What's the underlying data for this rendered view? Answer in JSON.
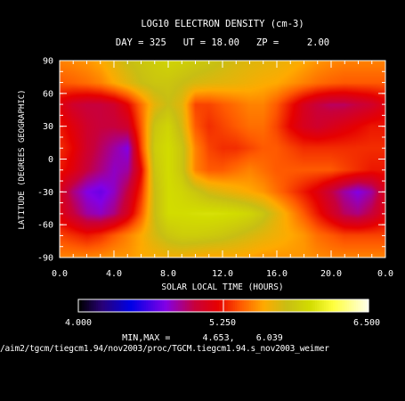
{
  "chart_data": {
    "type": "heatmap",
    "title": "LOG10 ELECTRON DENSITY (cm-3)",
    "subtitle": "DAY = 325   UT = 18.00   ZP =     2.00",
    "xlabel": "SOLAR LOCAL TIME (HOURS)",
    "ylabel": "LATITUDE (DEGREES GEOGRAPHIC)",
    "xlim": [
      0.0,
      24.0
    ],
    "ylim": [
      -90,
      90
    ],
    "x_ticks": [
      "0.0",
      "4.0",
      "8.0",
      "12.0",
      "16.0",
      "20.0",
      "0.0"
    ],
    "y_ticks": [
      "90",
      "60",
      "30",
      "0",
      "-30",
      "-60",
      "-90"
    ],
    "x_tick_values": [
      0,
      4,
      8,
      12,
      16,
      20,
      24
    ],
    "y_tick_values": [
      90,
      60,
      30,
      0,
      -30,
      -60,
      -90
    ],
    "colorbar": {
      "min": 4.0,
      "max": 6.5,
      "tick_labels": [
        "4.000",
        "5.250",
        "6.500"
      ],
      "tick_values": [
        4.0,
        5.25,
        6.5
      ]
    },
    "data_min": 4.653,
    "data_max": 6.039,
    "grid_step": 30,
    "z_grid": [
      [
        5.5,
        5.52,
        5.55,
        5.6,
        5.7,
        5.8,
        5.85,
        5.9,
        5.95,
        5.92,
        5.88,
        5.85,
        5.8,
        5.75,
        5.72,
        5.7,
        5.68,
        5.65,
        5.6,
        5.55,
        5.52,
        5.5,
        5.5,
        5.5,
        5.5
      ],
      [
        5.4,
        5.42,
        5.45,
        5.5,
        5.6,
        5.7,
        5.8,
        5.85,
        5.85,
        5.8,
        5.75,
        5.72,
        5.7,
        5.68,
        5.65,
        5.62,
        5.6,
        5.55,
        5.5,
        5.45,
        5.42,
        5.4,
        5.4,
        5.4,
        5.4
      ],
      [
        5.15,
        5.05,
        5.0,
        5.0,
        5.05,
        5.2,
        5.45,
        5.7,
        5.8,
        5.7,
        5.35,
        5.35,
        5.4,
        5.45,
        5.5,
        5.5,
        5.4,
        5.25,
        5.1,
        5.0,
        4.95,
        4.95,
        5.0,
        5.05,
        5.15
      ],
      [
        5.25,
        5.15,
        5.05,
        5.0,
        5.0,
        5.05,
        5.4,
        5.85,
        5.95,
        5.75,
        5.4,
        5.3,
        5.35,
        5.4,
        5.45,
        5.45,
        5.35,
        5.2,
        5.1,
        5.05,
        5.1,
        5.15,
        5.2,
        5.25,
        5.25
      ],
      [
        5.3,
        5.2,
        5.05,
        4.95,
        4.85,
        4.75,
        5.35,
        5.9,
        6.0,
        5.85,
        5.5,
        5.35,
        5.3,
        5.3,
        5.35,
        5.4,
        5.4,
        5.35,
        5.3,
        5.3,
        5.3,
        5.3,
        5.3,
        5.3,
        5.3
      ],
      [
        5.25,
        5.15,
        5.0,
        4.9,
        4.8,
        4.85,
        5.2,
        5.85,
        6.0,
        5.85,
        5.5,
        5.4,
        5.4,
        5.45,
        5.5,
        5.45,
        5.4,
        5.4,
        5.4,
        5.4,
        5.4,
        5.35,
        5.3,
        5.25,
        5.25
      ],
      [
        5.1,
        4.9,
        4.75,
        4.7,
        4.8,
        5.0,
        5.3,
        5.8,
        6.0,
        5.95,
        5.85,
        5.75,
        5.7,
        5.65,
        5.6,
        5.55,
        5.45,
        5.35,
        5.25,
        5.15,
        5.0,
        4.85,
        4.75,
        4.85,
        5.1
      ],
      [
        5.15,
        5.0,
        4.85,
        4.8,
        4.9,
        5.1,
        5.4,
        5.8,
        6.0,
        6.0,
        6.02,
        6.03,
        6.02,
        6.0,
        5.95,
        5.85,
        5.7,
        5.55,
        5.4,
        5.25,
        5.1,
        4.95,
        4.9,
        5.0,
        5.15
      ],
      [
        5.35,
        5.3,
        5.25,
        5.3,
        5.4,
        5.5,
        5.6,
        5.75,
        5.85,
        5.9,
        5.9,
        5.88,
        5.85,
        5.8,
        5.75,
        5.7,
        5.65,
        5.6,
        5.55,
        5.45,
        5.4,
        5.35,
        5.35,
        5.35,
        5.35
      ],
      [
        5.5,
        5.5,
        5.5,
        5.52,
        5.55,
        5.55,
        5.6,
        5.62,
        5.65,
        5.65,
        5.62,
        5.6,
        5.6,
        5.6,
        5.58,
        5.55,
        5.55,
        5.55,
        5.55,
        5.52,
        5.5,
        5.5,
        5.5,
        5.5,
        5.5
      ]
    ]
  },
  "footer": {
    "minmax_label": "MIN,MAX =",
    "min_value": "4.653,",
    "max_value": "6.039",
    "file_path": "/aim2/tgcm/tiegcm1.94/nov2003/proc/TGCM.tiegcm1.94.s_nov2003_weimer"
  }
}
